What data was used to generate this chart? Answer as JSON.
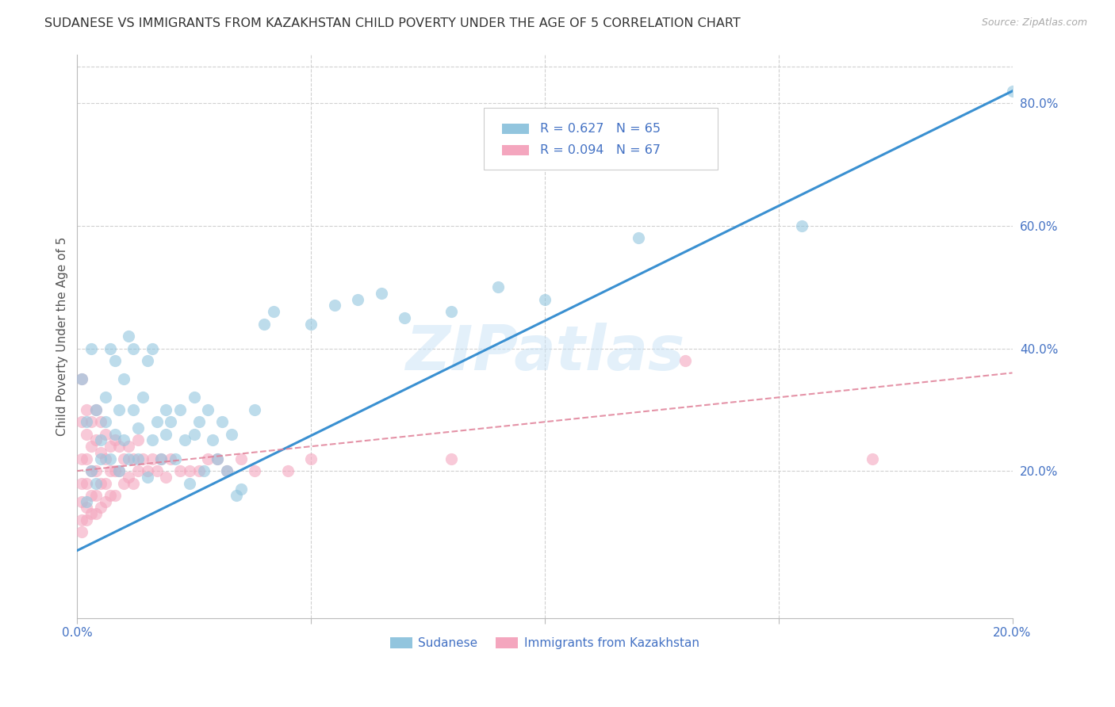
{
  "title": "SUDANESE VS IMMIGRANTS FROM KAZAKHSTAN CHILD POVERTY UNDER THE AGE OF 5 CORRELATION CHART",
  "source": "Source: ZipAtlas.com",
  "ylabel": "Child Poverty Under the Age of 5",
  "right_yticklabels": [
    "",
    "20.0%",
    "40.0%",
    "60.0%",
    "80.0%"
  ],
  "right_ytick_vals": [
    0.0,
    0.2,
    0.4,
    0.6,
    0.8
  ],
  "xmin": 0.0,
  "xmax": 0.2,
  "ymin": -0.04,
  "ymax": 0.88,
  "legend_label1": "Sudanese",
  "legend_label2": "Immigrants from Kazakhstan",
  "watermark": "ZIPatlas",
  "blue_color": "#92c5de",
  "pink_color": "#f4a6be",
  "blue_line_color": "#3a90d1",
  "pink_line_color": "#e08098",
  "axis_label_color": "#4472c4",
  "title_fontsize": 11.5,
  "source_fontsize": 9,
  "blue_line_x0": 0.0,
  "blue_line_y0": 0.07,
  "blue_line_x1": 0.2,
  "blue_line_y1": 0.82,
  "pink_line_x0": 0.0,
  "pink_line_y0": 0.2,
  "pink_line_x1": 0.2,
  "pink_line_y1": 0.36,
  "sudanese_points": [
    [
      0.001,
      0.35
    ],
    [
      0.002,
      0.15
    ],
    [
      0.002,
      0.28
    ],
    [
      0.003,
      0.2
    ],
    [
      0.003,
      0.4
    ],
    [
      0.004,
      0.3
    ],
    [
      0.004,
      0.18
    ],
    [
      0.005,
      0.25
    ],
    [
      0.005,
      0.22
    ],
    [
      0.006,
      0.32
    ],
    [
      0.006,
      0.28
    ],
    [
      0.007,
      0.4
    ],
    [
      0.007,
      0.22
    ],
    [
      0.008,
      0.38
    ],
    [
      0.008,
      0.26
    ],
    [
      0.009,
      0.3
    ],
    [
      0.009,
      0.2
    ],
    [
      0.01,
      0.25
    ],
    [
      0.01,
      0.35
    ],
    [
      0.011,
      0.42
    ],
    [
      0.011,
      0.22
    ],
    [
      0.012,
      0.3
    ],
    [
      0.012,
      0.4
    ],
    [
      0.013,
      0.27
    ],
    [
      0.013,
      0.22
    ],
    [
      0.014,
      0.32
    ],
    [
      0.015,
      0.38
    ],
    [
      0.015,
      0.19
    ],
    [
      0.016,
      0.25
    ],
    [
      0.016,
      0.4
    ],
    [
      0.017,
      0.28
    ],
    [
      0.018,
      0.22
    ],
    [
      0.019,
      0.3
    ],
    [
      0.019,
      0.26
    ],
    [
      0.02,
      0.28
    ],
    [
      0.021,
      0.22
    ],
    [
      0.022,
      0.3
    ],
    [
      0.023,
      0.25
    ],
    [
      0.024,
      0.18
    ],
    [
      0.025,
      0.26
    ],
    [
      0.025,
      0.32
    ],
    [
      0.026,
      0.28
    ],
    [
      0.027,
      0.2
    ],
    [
      0.028,
      0.3
    ],
    [
      0.029,
      0.25
    ],
    [
      0.03,
      0.22
    ],
    [
      0.031,
      0.28
    ],
    [
      0.032,
      0.2
    ],
    [
      0.033,
      0.26
    ],
    [
      0.034,
      0.16
    ],
    [
      0.035,
      0.17
    ],
    [
      0.038,
      0.3
    ],
    [
      0.04,
      0.44
    ],
    [
      0.042,
      0.46
    ],
    [
      0.05,
      0.44
    ],
    [
      0.055,
      0.47
    ],
    [
      0.06,
      0.48
    ],
    [
      0.065,
      0.49
    ],
    [
      0.07,
      0.45
    ],
    [
      0.08,
      0.46
    ],
    [
      0.09,
      0.5
    ],
    [
      0.1,
      0.48
    ],
    [
      0.12,
      0.58
    ],
    [
      0.155,
      0.6
    ],
    [
      0.2,
      0.82
    ]
  ],
  "kazakhstan_points": [
    [
      0.001,
      0.35
    ],
    [
      0.001,
      0.28
    ],
    [
      0.001,
      0.22
    ],
    [
      0.001,
      0.18
    ],
    [
      0.001,
      0.15
    ],
    [
      0.001,
      0.12
    ],
    [
      0.001,
      0.1
    ],
    [
      0.002,
      0.3
    ],
    [
      0.002,
      0.26
    ],
    [
      0.002,
      0.22
    ],
    [
      0.002,
      0.18
    ],
    [
      0.002,
      0.14
    ],
    [
      0.002,
      0.12
    ],
    [
      0.003,
      0.28
    ],
    [
      0.003,
      0.24
    ],
    [
      0.003,
      0.2
    ],
    [
      0.003,
      0.16
    ],
    [
      0.003,
      0.13
    ],
    [
      0.004,
      0.3
    ],
    [
      0.004,
      0.25
    ],
    [
      0.004,
      0.2
    ],
    [
      0.004,
      0.16
    ],
    [
      0.004,
      0.13
    ],
    [
      0.005,
      0.28
    ],
    [
      0.005,
      0.23
    ],
    [
      0.005,
      0.18
    ],
    [
      0.005,
      0.14
    ],
    [
      0.006,
      0.26
    ],
    [
      0.006,
      0.22
    ],
    [
      0.006,
      0.18
    ],
    [
      0.006,
      0.15
    ],
    [
      0.007,
      0.24
    ],
    [
      0.007,
      0.2
    ],
    [
      0.007,
      0.16
    ],
    [
      0.008,
      0.25
    ],
    [
      0.008,
      0.2
    ],
    [
      0.008,
      0.16
    ],
    [
      0.009,
      0.24
    ],
    [
      0.009,
      0.2
    ],
    [
      0.01,
      0.22
    ],
    [
      0.01,
      0.18
    ],
    [
      0.011,
      0.24
    ],
    [
      0.011,
      0.19
    ],
    [
      0.012,
      0.22
    ],
    [
      0.012,
      0.18
    ],
    [
      0.013,
      0.25
    ],
    [
      0.013,
      0.2
    ],
    [
      0.014,
      0.22
    ],
    [
      0.015,
      0.2
    ],
    [
      0.016,
      0.22
    ],
    [
      0.017,
      0.2
    ],
    [
      0.018,
      0.22
    ],
    [
      0.019,
      0.19
    ],
    [
      0.02,
      0.22
    ],
    [
      0.022,
      0.2
    ],
    [
      0.024,
      0.2
    ],
    [
      0.026,
      0.2
    ],
    [
      0.028,
      0.22
    ],
    [
      0.03,
      0.22
    ],
    [
      0.032,
      0.2
    ],
    [
      0.035,
      0.22
    ],
    [
      0.038,
      0.2
    ],
    [
      0.045,
      0.2
    ],
    [
      0.05,
      0.22
    ],
    [
      0.08,
      0.22
    ],
    [
      0.13,
      0.38
    ],
    [
      0.17,
      0.22
    ]
  ]
}
